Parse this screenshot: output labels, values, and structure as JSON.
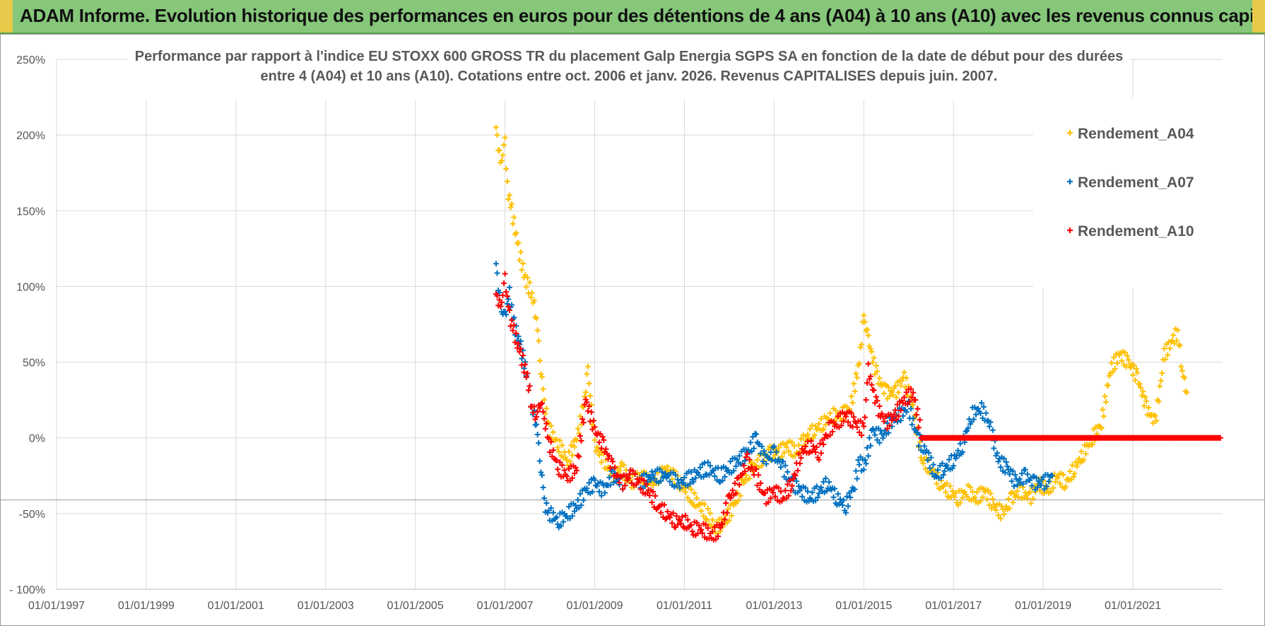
{
  "banner": {
    "title": "ADAM Informe. Evolution historique des performances en euros pour des détentions de 4 ans (A04) à 10 ans (A10) avec les revenus connus capitalisés"
  },
  "colors": {
    "banner_bg": "#86c77a",
    "banner_accent": "#e8c94a",
    "A04": "#ffc000",
    "A07": "#0070c0",
    "A10": "#ff0000"
  },
  "chart_data": {
    "type": "scatter",
    "title_line1": "Performance par rapport à l'indice EU STOXX 600 GROSS TR  du placement Galp Energia SGPS SA en fonction de la date de début pour des durées",
    "title_line2": "entre 4 (A04) et 10 ans (A10).  Cotations entre oct. 2006 et janv. 2026.  Revenus CAPITALISES  depuis juin. 2007.",
    "xlabel": "",
    "ylabel": "",
    "xlim": [
      1997.0,
      2023.0
    ],
    "ylim": [
      -100,
      250
    ],
    "x_ticks": [
      1997,
      1999,
      2001,
      2003,
      2005,
      2007,
      2009,
      2011,
      2013,
      2015,
      2017,
      2019,
      2021
    ],
    "x_tick_labels": [
      "01/01/1997",
      "01/01/1999",
      "01/01/2001",
      "01/01/2003",
      "01/01/2005",
      "01/01/2007",
      "01/01/2009",
      "01/01/2011",
      "01/01/2013",
      "01/01/2015",
      "01/01/2017",
      "01/01/2019",
      "01/01/2021"
    ],
    "y_ticks": [
      250,
      200,
      150,
      100,
      50,
      0,
      -50,
      -100
    ],
    "y_tick_labels": [
      "250%",
      "200%",
      "150%",
      "100%",
      "50%",
      "0%",
      "-50%",
      "- 100%"
    ],
    "legend_position": "top-right",
    "series": [
      {
        "name": "Rendement_A04",
        "marker": "+",
        "points": [
          [
            2006.8,
            205
          ],
          [
            2006.9,
            180
          ],
          [
            2007.0,
            195
          ],
          [
            2007.05,
            165
          ],
          [
            2007.15,
            150
          ],
          [
            2007.3,
            125
          ],
          [
            2007.45,
            105
          ],
          [
            2007.6,
            95
          ],
          [
            2007.7,
            80
          ],
          [
            2007.8,
            45
          ],
          [
            2007.9,
            20
          ],
          [
            2008.0,
            5
          ],
          [
            2008.2,
            -5
          ],
          [
            2008.4,
            -15
          ],
          [
            2008.6,
            0
          ],
          [
            2008.75,
            20
          ],
          [
            2008.85,
            45
          ],
          [
            2009.0,
            -5
          ],
          [
            2009.2,
            -15
          ],
          [
            2009.4,
            -25
          ],
          [
            2009.6,
            -20
          ],
          [
            2009.8,
            -30
          ],
          [
            2010.0,
            -25
          ],
          [
            2010.3,
            -30
          ],
          [
            2010.6,
            -20
          ],
          [
            2010.9,
            -30
          ],
          [
            2011.2,
            -40
          ],
          [
            2011.5,
            -50
          ],
          [
            2011.7,
            -60
          ],
          [
            2011.9,
            -55
          ],
          [
            2012.1,
            -45
          ],
          [
            2012.3,
            -30
          ],
          [
            2012.5,
            -20
          ],
          [
            2012.7,
            -15
          ],
          [
            2012.9,
            -10
          ],
          [
            2013.1,
            -10
          ],
          [
            2013.3,
            -5
          ],
          [
            2013.5,
            -10
          ],
          [
            2013.7,
            0
          ],
          [
            2013.9,
            5
          ],
          [
            2014.1,
            10
          ],
          [
            2014.3,
            15
          ],
          [
            2014.5,
            15
          ],
          [
            2014.7,
            20
          ],
          [
            2014.9,
            50
          ],
          [
            2015.0,
            80
          ],
          [
            2015.1,
            65
          ],
          [
            2015.3,
            40
          ],
          [
            2015.5,
            30
          ],
          [
            2015.7,
            30
          ],
          [
            2015.9,
            40
          ],
          [
            2016.1,
            20
          ],
          [
            2016.3,
            -15
          ],
          [
            2016.5,
            -20
          ],
          [
            2016.7,
            -30
          ],
          [
            2016.9,
            -35
          ],
          [
            2017.1,
            -40
          ],
          [
            2017.3,
            -35
          ],
          [
            2017.5,
            -40
          ],
          [
            2017.7,
            -35
          ],
          [
            2017.9,
            -45
          ],
          [
            2018.1,
            -50
          ],
          [
            2018.3,
            -40
          ],
          [
            2018.5,
            -35
          ],
          [
            2018.7,
            -40
          ],
          [
            2018.9,
            -30
          ],
          [
            2019.1,
            -35
          ],
          [
            2019.3,
            -25
          ],
          [
            2019.5,
            -30
          ],
          [
            2019.7,
            -20
          ],
          [
            2019.9,
            -10
          ],
          [
            2020.1,
            0
          ],
          [
            2020.3,
            10
          ],
          [
            2020.5,
            45
          ],
          [
            2020.7,
            55
          ],
          [
            2020.9,
            50
          ],
          [
            2021.1,
            40
          ],
          [
            2021.3,
            20
          ],
          [
            2021.5,
            10
          ],
          [
            2021.7,
            55
          ],
          [
            2021.9,
            65
          ],
          [
            2022.0,
            70
          ],
          [
            2022.1,
            45
          ],
          [
            2022.2,
            30
          ]
        ]
      },
      {
        "name": "Rendement_A07",
        "marker": "+",
        "points": [
          [
            2006.8,
            115
          ],
          [
            2006.9,
            85
          ],
          [
            2007.0,
            80
          ],
          [
            2007.1,
            95
          ],
          [
            2007.2,
            75
          ],
          [
            2007.35,
            60
          ],
          [
            2007.5,
            40
          ],
          [
            2007.6,
            20
          ],
          [
            2007.7,
            10
          ],
          [
            2007.8,
            -20
          ],
          [
            2007.9,
            -45
          ],
          [
            2008.0,
            -50
          ],
          [
            2008.2,
            -55
          ],
          [
            2008.4,
            -50
          ],
          [
            2008.6,
            -45
          ],
          [
            2008.8,
            -35
          ],
          [
            2009.0,
            -30
          ],
          [
            2009.2,
            -35
          ],
          [
            2009.4,
            -25
          ],
          [
            2009.6,
            -30
          ],
          [
            2009.8,
            -25
          ],
          [
            2010.0,
            -30
          ],
          [
            2010.3,
            -25
          ],
          [
            2010.6,
            -25
          ],
          [
            2010.9,
            -30
          ],
          [
            2011.2,
            -25
          ],
          [
            2011.5,
            -20
          ],
          [
            2011.8,
            -25
          ],
          [
            2012.0,
            -20
          ],
          [
            2012.2,
            -15
          ],
          [
            2012.4,
            -10
          ],
          [
            2012.6,
            0
          ],
          [
            2012.8,
            -15
          ],
          [
            2013.0,
            -10
          ],
          [
            2013.2,
            -20
          ],
          [
            2013.4,
            -30
          ],
          [
            2013.6,
            -35
          ],
          [
            2013.8,
            -40
          ],
          [
            2014.0,
            -35
          ],
          [
            2014.2,
            -30
          ],
          [
            2014.4,
            -40
          ],
          [
            2014.6,
            -45
          ],
          [
            2014.8,
            -30
          ],
          [
            2014.9,
            -15
          ],
          [
            2015.0,
            -20
          ],
          [
            2015.2,
            5
          ],
          [
            2015.4,
            0
          ],
          [
            2015.6,
            10
          ],
          [
            2015.8,
            15
          ],
          [
            2016.0,
            20
          ],
          [
            2016.2,
            0
          ],
          [
            2016.4,
            -10
          ],
          [
            2016.6,
            -25
          ],
          [
            2016.8,
            -20
          ],
          [
            2017.0,
            -15
          ],
          [
            2017.2,
            -5
          ],
          [
            2017.4,
            15
          ],
          [
            2017.6,
            20
          ],
          [
            2017.8,
            10
          ],
          [
            2018.0,
            -15
          ],
          [
            2018.2,
            -20
          ],
          [
            2018.4,
            -30
          ],
          [
            2018.6,
            -25
          ],
          [
            2018.8,
            -30
          ],
          [
            2019.0,
            -30
          ],
          [
            2019.2,
            -25
          ]
        ]
      },
      {
        "name": "Rendement_A10",
        "marker": "+",
        "points": [
          [
            2006.8,
            95
          ],
          [
            2006.9,
            85
          ],
          [
            2007.0,
            105
          ],
          [
            2007.1,
            80
          ],
          [
            2007.2,
            70
          ],
          [
            2007.35,
            55
          ],
          [
            2007.5,
            40
          ],
          [
            2007.6,
            20
          ],
          [
            2007.7,
            15
          ],
          [
            2007.8,
            25
          ],
          [
            2007.9,
            10
          ],
          [
            2008.0,
            -5
          ],
          [
            2008.2,
            -20
          ],
          [
            2008.4,
            -25
          ],
          [
            2008.6,
            -20
          ],
          [
            2008.8,
            25
          ],
          [
            2009.0,
            5
          ],
          [
            2009.2,
            -5
          ],
          [
            2009.4,
            -20
          ],
          [
            2009.6,
            -30
          ],
          [
            2009.8,
            -25
          ],
          [
            2010.0,
            -30
          ],
          [
            2010.2,
            -35
          ],
          [
            2010.4,
            -45
          ],
          [
            2010.6,
            -50
          ],
          [
            2010.8,
            -55
          ],
          [
            2011.0,
            -55
          ],
          [
            2011.2,
            -60
          ],
          [
            2011.4,
            -60
          ],
          [
            2011.6,
            -65
          ],
          [
            2011.8,
            -60
          ],
          [
            2012.0,
            -40
          ],
          [
            2012.2,
            -30
          ],
          [
            2012.4,
            -15
          ],
          [
            2012.6,
            -25
          ],
          [
            2012.8,
            -40
          ],
          [
            2013.0,
            -35
          ],
          [
            2013.2,
            -40
          ],
          [
            2013.4,
            -30
          ],
          [
            2013.6,
            -10
          ],
          [
            2013.8,
            -5
          ],
          [
            2014.0,
            -10
          ],
          [
            2014.2,
            5
          ],
          [
            2014.4,
            10
          ],
          [
            2014.6,
            15
          ],
          [
            2014.8,
            10
          ],
          [
            2015.0,
            5
          ],
          [
            2015.1,
            45
          ],
          [
            2015.3,
            20
          ],
          [
            2015.5,
            10
          ],
          [
            2015.7,
            15
          ],
          [
            2015.9,
            25
          ],
          [
            2016.1,
            30
          ],
          [
            2016.3,
            0
          ],
          [
            2016.6,
            0
          ],
          [
            2017.0,
            0
          ],
          [
            2017.5,
            0
          ],
          [
            2018.0,
            0
          ],
          [
            2018.5,
            0
          ],
          [
            2019.0,
            0
          ],
          [
            2019.5,
            0
          ],
          [
            2020.0,
            0
          ],
          [
            2020.5,
            0
          ],
          [
            2021.0,
            0
          ],
          [
            2021.5,
            0
          ],
          [
            2022.0,
            0
          ],
          [
            2022.5,
            0
          ],
          [
            2022.95,
            0
          ]
        ]
      }
    ]
  }
}
